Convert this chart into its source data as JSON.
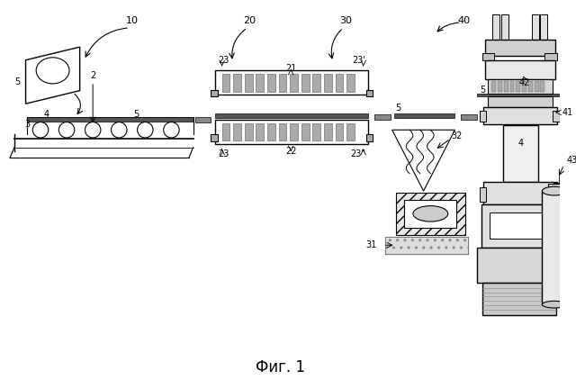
{
  "title": "Фиг. 1",
  "title_fontsize": 12,
  "background_color": "#ffffff",
  "line_color": "#000000",
  "gray_light": "#d8d8d8",
  "gray_mid": "#b0b0b0",
  "gray_dark": "#888888"
}
